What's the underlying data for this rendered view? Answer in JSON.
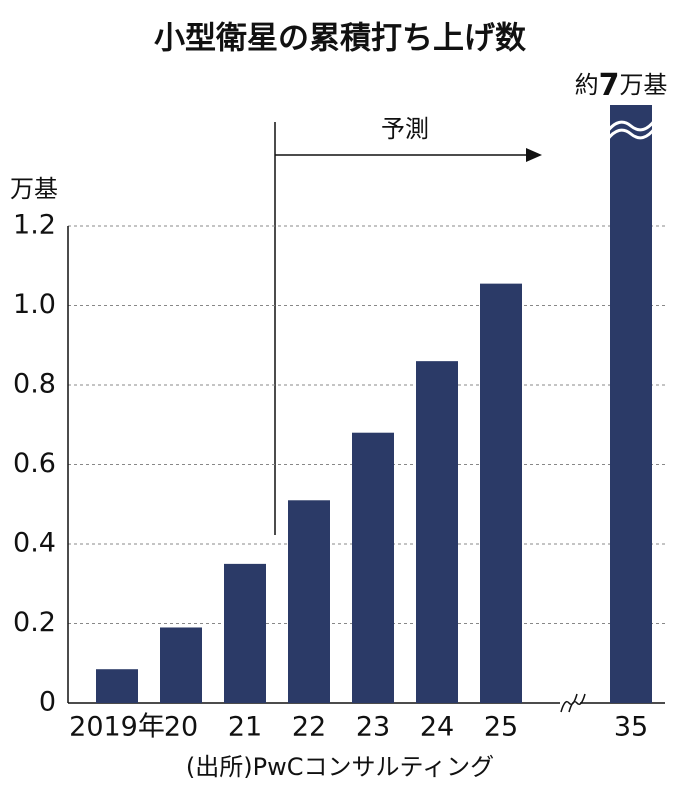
{
  "chart_data": {
    "type": "bar",
    "title": "小型衛星の累積打ち上げ数",
    "y_label": "万基",
    "categories": [
      "2019年",
      "20",
      "21",
      "22",
      "23",
      "24",
      "25",
      "35"
    ],
    "values": [
      0.085,
      0.19,
      0.35,
      0.51,
      0.68,
      0.86,
      1.055,
      7
    ],
    "value_labels": [
      null,
      null,
      null,
      null,
      null,
      null,
      null,
      "約7万基"
    ],
    "color": "#2b3a67",
    "ylim": [
      0,
      1.2
    ],
    "yticks": [
      0,
      0.2,
      0.4,
      0.6,
      0.8,
      {
        "value": 1,
        "label": "1.0"
      },
      1.2
    ],
    "grid": true,
    "axis_break": true,
    "annotation": "予測",
    "source": "(出所)PwCコンサルティング"
  }
}
